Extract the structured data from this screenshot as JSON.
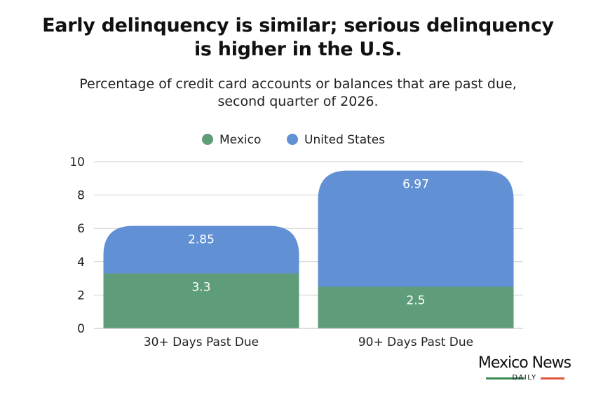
{
  "title_lines": [
    "Early delinquency is similar; serious delinquency",
    "is higher in the U.S."
  ],
  "subtitle_lines": [
    "Percentage of credit card accounts or balances that are past due,",
    "second quarter of 2026."
  ],
  "logo": {
    "name": "Mexico News",
    "sub": "DAILY",
    "colors": [
      "#3e8a55",
      "#e2533a"
    ]
  },
  "chart_data": {
    "type": "bar",
    "stacked": true,
    "title": "Early delinquency is similar; serious delinquency is higher in the U.S.",
    "subtitle": "Percentage of credit card accounts or balances that are past due, second quarter of 2026.",
    "categories": [
      "30+ Days Past Due",
      "90+ Days Past Due"
    ],
    "series": [
      {
        "name": "Mexico",
        "values": [
          3.3,
          2.5
        ],
        "color": "#5f9c79"
      },
      {
        "name": "United States",
        "values": [
          2.85,
          6.97
        ],
        "color": "#6190d4"
      }
    ],
    "ylim": [
      0,
      10
    ],
    "yticks": [
      "0",
      "2",
      "4",
      "6",
      "8",
      "10"
    ],
    "grid": true,
    "legend": "top"
  }
}
